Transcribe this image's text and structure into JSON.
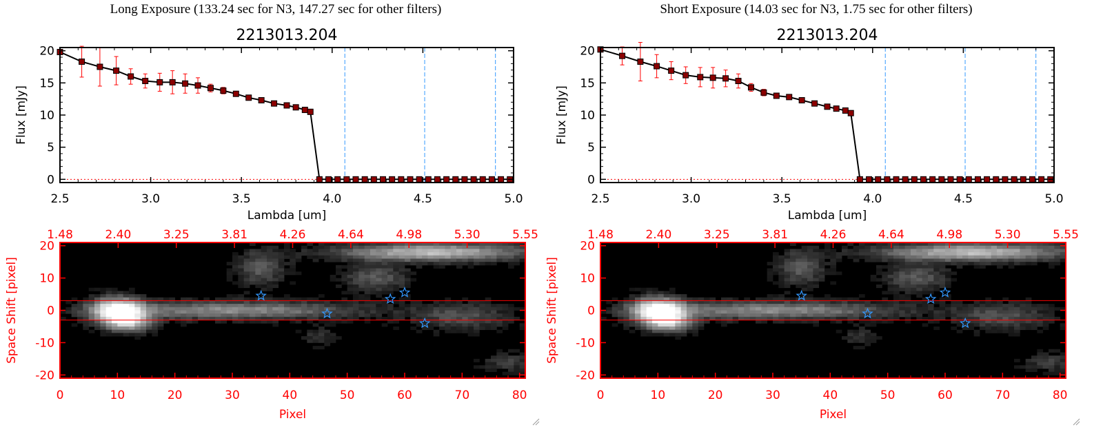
{
  "panels": [
    {
      "title": "Long Exposure (133.24 sec for N3, 147.27 sec for other filters)",
      "spectrum_title": "2213013.204",
      "stack_title": ""
    },
    {
      "title": "Short Exposure (14.03 sec for N3, 1.75 sec for other filters)",
      "spectrum_title": "2213013.204",
      "stack_title": ""
    }
  ],
  "colors": {
    "data_marker": "#8b0000",
    "error_bar": "#ff0000",
    "line": "#000000",
    "filter_line": "#3399ff",
    "zero_line": "#ff0000",
    "image_axes": "#ff0000",
    "aperture": "#ff0000",
    "star": "#3399ff"
  },
  "chart_data": [
    {
      "panel": "Long Exposure",
      "type": "line",
      "title": "2213013.204",
      "xlabel": "Lambda [um]",
      "ylabel": "Flux [mJy]",
      "xlim": [
        2.5,
        5.0
      ],
      "ylim": [
        -0.5,
        20.5
      ],
      "xticks": [
        "2.5",
        "3.0",
        "3.5",
        "4.0",
        "4.5",
        "5.0"
      ],
      "yticks": [
        "0",
        "5",
        "10",
        "15",
        "20"
      ],
      "grid": false,
      "x": [
        2.5,
        2.62,
        2.72,
        2.81,
        2.89,
        2.97,
        3.05,
        3.12,
        3.19,
        3.26,
        3.33,
        3.4,
        3.47,
        3.54,
        3.61,
        3.68,
        3.75,
        3.8,
        3.85,
        3.88,
        3.93,
        3.98,
        4.03,
        4.08,
        4.13,
        4.18,
        4.23,
        4.28,
        4.33,
        4.38,
        4.43,
        4.48,
        4.53,
        4.58,
        4.63,
        4.68,
        4.73,
        4.78,
        4.83,
        4.88,
        4.93,
        4.98
      ],
      "y": [
        19.8,
        18.3,
        17.5,
        16.9,
        16.0,
        15.3,
        15.1,
        15.1,
        14.9,
        14.6,
        14.2,
        13.8,
        13.3,
        12.7,
        12.3,
        11.8,
        11.5,
        11.2,
        10.8,
        10.5,
        0.0,
        0.0,
        0.0,
        0.0,
        0.0,
        0.0,
        0.0,
        0.0,
        0.0,
        0.0,
        0.0,
        0.0,
        0.0,
        0.0,
        0.0,
        0.0,
        0.0,
        0.0,
        0.0,
        0.0,
        0.0,
        0.0
      ],
      "yerr": [
        0.3,
        2.4,
        3.0,
        2.2,
        1.2,
        1.1,
        1.4,
        1.8,
        1.5,
        1.2,
        0.6,
        0.5,
        0.4,
        0.4,
        0.3,
        0.3,
        0.3,
        0.3,
        0.3,
        0.3,
        0,
        0,
        0,
        0,
        0,
        0,
        0,
        0,
        0,
        0,
        0,
        0,
        0,
        0,
        0,
        0,
        0,
        0,
        0,
        0,
        0,
        0
      ],
      "filter_lines_x": [
        4.07,
        4.51,
        4.9
      ]
    },
    {
      "panel": "Short Exposure",
      "type": "line",
      "title": "2213013.204",
      "xlabel": "Lambda [um]",
      "ylabel": "Flux [mJy]",
      "xlim": [
        2.5,
        5.0
      ],
      "ylim": [
        -0.5,
        20.5
      ],
      "xticks": [
        "2.5",
        "3.0",
        "3.5",
        "4.0",
        "4.5",
        "5.0"
      ],
      "yticks": [
        "0",
        "5",
        "10",
        "15",
        "20"
      ],
      "grid": false,
      "x": [
        2.5,
        2.62,
        2.72,
        2.81,
        2.89,
        2.97,
        3.05,
        3.12,
        3.19,
        3.26,
        3.33,
        3.4,
        3.47,
        3.54,
        3.61,
        3.68,
        3.75,
        3.8,
        3.85,
        3.88,
        3.93,
        3.98,
        4.03,
        4.08,
        4.13,
        4.18,
        4.23,
        4.28,
        4.33,
        4.38,
        4.43,
        4.48,
        4.53,
        4.58,
        4.63,
        4.68,
        4.73,
        4.78,
        4.83,
        4.88,
        4.93,
        4.98
      ],
      "y": [
        20.2,
        19.2,
        18.3,
        17.6,
        16.9,
        16.2,
        15.9,
        15.8,
        15.7,
        15.3,
        14.3,
        13.5,
        13.0,
        12.8,
        12.3,
        11.8,
        11.3,
        11.0,
        10.7,
        10.3,
        0.0,
        0.0,
        0.0,
        0.0,
        0.0,
        0.0,
        0.0,
        0.0,
        0.0,
        0.0,
        0.0,
        0.0,
        0.0,
        0.0,
        0.0,
        0.0,
        0.0,
        0.0,
        0.0,
        0.0,
        0.0,
        0.0
      ],
      "yerr": [
        0.3,
        1.4,
        3.0,
        1.8,
        1.4,
        1.3,
        1.5,
        1.6,
        1.3,
        1.1,
        0.6,
        0.5,
        0.4,
        0.4,
        0.3,
        0.3,
        0.3,
        0.3,
        0.3,
        0.3,
        0,
        0,
        0,
        0,
        0,
        0,
        0,
        0,
        0,
        0,
        0,
        0,
        0,
        0,
        0,
        0,
        0,
        0,
        0,
        0,
        0,
        0
      ],
      "filter_lines_x": [
        4.07,
        4.51,
        4.9
      ]
    },
    {
      "panel": "Long Exposure",
      "type": "heatmap",
      "xlabel": "Pixel",
      "ylabel": "Space Shift [pixel]",
      "xlim": [
        0,
        81
      ],
      "ylim": [
        -21,
        21
      ],
      "xticks": [
        "0",
        "10",
        "20",
        "30",
        "40",
        "50",
        "60",
        "70",
        "80"
      ],
      "yticks": [
        "-20",
        "-10",
        "0",
        "10",
        "20"
      ],
      "top_axis_ticks": [
        "1.48",
        "2.40",
        "3.25",
        "3.81",
        "4.26",
        "4.64",
        "4.98",
        "5.30",
        "5.55"
      ],
      "aperture_y": [
        3,
        -3
      ],
      "stars": [
        [
          35,
          4.5
        ],
        [
          46.5,
          -1
        ],
        [
          57.5,
          3.5
        ],
        [
          60,
          5.5
        ],
        [
          63.5,
          -4
        ]
      ],
      "sources": [
        {
          "x": 10,
          "y": 0,
          "sx": 3.2,
          "sy": 2.8,
          "amp": 1.0
        },
        {
          "x": 12,
          "y": -4,
          "sx": 3,
          "sy": 2,
          "amp": 0.6
        },
        {
          "x": 30,
          "y": 0,
          "sx": 16,
          "sy": 2,
          "amp": 0.55
        },
        {
          "x": 65,
          "y": 18,
          "sx": 12,
          "sy": 2,
          "amp": 0.75
        },
        {
          "x": 55,
          "y": 10,
          "sx": 4,
          "sy": 3,
          "amp": 0.35
        },
        {
          "x": 35,
          "y": 13,
          "sx": 3,
          "sy": 4,
          "amp": 0.35
        },
        {
          "x": 70,
          "y": -2,
          "sx": 6,
          "sy": 3,
          "amp": 0.3
        },
        {
          "x": 78,
          "y": -16,
          "sx": 3,
          "sy": 2,
          "amp": 0.25
        },
        {
          "x": 45,
          "y": -8,
          "sx": 2,
          "sy": 2,
          "amp": 0.2
        }
      ]
    },
    {
      "panel": "Short Exposure",
      "type": "heatmap",
      "xlabel": "Pixel",
      "ylabel": "Space Shift [pixel]",
      "xlim": [
        0,
        81
      ],
      "ylim": [
        -21,
        21
      ],
      "xticks": [
        "0",
        "10",
        "20",
        "30",
        "40",
        "50",
        "60",
        "70",
        "80"
      ],
      "yticks": [
        "-20",
        "-10",
        "0",
        "10",
        "20"
      ],
      "top_axis_ticks": [
        "1.48",
        "2.40",
        "3.25",
        "3.81",
        "4.26",
        "4.64",
        "4.98",
        "5.30",
        "5.55"
      ],
      "aperture_y": [
        3,
        -3
      ],
      "stars": [
        [
          35,
          4.5
        ],
        [
          46.5,
          -1
        ],
        [
          57.5,
          3.5
        ],
        [
          60,
          5.5
        ],
        [
          63.5,
          -4
        ]
      ],
      "sources": [
        {
          "x": 10,
          "y": 0,
          "sx": 3.2,
          "sy": 2.8,
          "amp": 1.0
        },
        {
          "x": 12,
          "y": -4,
          "sx": 3,
          "sy": 2,
          "amp": 0.6
        },
        {
          "x": 30,
          "y": 0,
          "sx": 16,
          "sy": 2,
          "amp": 0.55
        },
        {
          "x": 65,
          "y": 18,
          "sx": 12,
          "sy": 2,
          "amp": 0.75
        },
        {
          "x": 55,
          "y": 10,
          "sx": 4,
          "sy": 3,
          "amp": 0.35
        },
        {
          "x": 35,
          "y": 13,
          "sx": 3,
          "sy": 4,
          "amp": 0.35
        },
        {
          "x": 70,
          "y": -2,
          "sx": 6,
          "sy": 3,
          "amp": 0.3
        },
        {
          "x": 78,
          "y": -16,
          "sx": 3,
          "sy": 2,
          "amp": 0.25
        },
        {
          "x": 45,
          "y": -8,
          "sx": 2,
          "sy": 2,
          "amp": 0.2
        }
      ]
    }
  ]
}
